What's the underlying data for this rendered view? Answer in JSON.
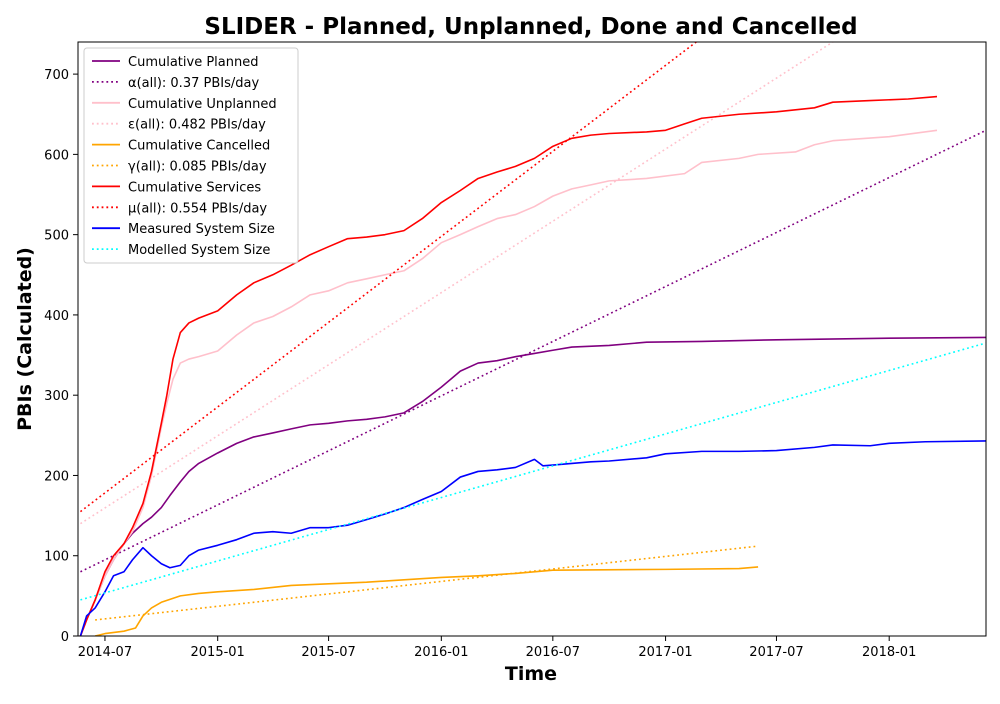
{
  "chart_data": {
    "type": "line",
    "title": "SLIDER - Planned, Unplanned, Done  and Cancelled",
    "xlabel": "Time",
    "ylabel": "PBIs (Calculated)",
    "xlim": [
      "2014-05-18",
      "2018-06-08"
    ],
    "ylim": [
      0,
      740
    ],
    "x_ticks": [
      "2014-07",
      "2015-01",
      "2015-07",
      "2016-01",
      "2016-07",
      "2017-01",
      "2017-07",
      "2018-01"
    ],
    "y_ticks": [
      0,
      100,
      200,
      300,
      400,
      500,
      600,
      700
    ],
    "grid": false,
    "legend_position": "upper left",
    "series": [
      {
        "name": "Cumulative Planned",
        "color": "#800080",
        "style": "solid",
        "points": [
          [
            "2014-05-22",
            0
          ],
          [
            "2014-06-01",
            20
          ],
          [
            "2014-06-15",
            45
          ],
          [
            "2014-07-01",
            75
          ],
          [
            "2014-07-15",
            95
          ],
          [
            "2014-08-01",
            115
          ],
          [
            "2014-08-15",
            128
          ],
          [
            "2014-09-01",
            140
          ],
          [
            "2014-09-15",
            148
          ],
          [
            "2014-10-01",
            160
          ],
          [
            "2014-10-15",
            175
          ],
          [
            "2014-11-01",
            192
          ],
          [
            "2014-11-15",
            205
          ],
          [
            "2014-12-01",
            215
          ],
          [
            "2015-01-01",
            228
          ],
          [
            "2015-02-01",
            240
          ],
          [
            "2015-03-01",
            248
          ],
          [
            "2015-04-01",
            253
          ],
          [
            "2015-05-01",
            258
          ],
          [
            "2015-06-01",
            263
          ],
          [
            "2015-07-01",
            265
          ],
          [
            "2015-08-01",
            268
          ],
          [
            "2015-09-01",
            270
          ],
          [
            "2015-10-01",
            273
          ],
          [
            "2015-11-01",
            278
          ],
          [
            "2015-12-01",
            292
          ],
          [
            "2016-01-01",
            310
          ],
          [
            "2016-02-01",
            330
          ],
          [
            "2016-03-01",
            340
          ],
          [
            "2016-04-01",
            343
          ],
          [
            "2016-05-01",
            348
          ],
          [
            "2016-06-01",
            352
          ],
          [
            "2016-07-01",
            356
          ],
          [
            "2016-08-01",
            360
          ],
          [
            "2016-10-01",
            362
          ],
          [
            "2016-12-01",
            366
          ],
          [
            "2017-03-01",
            367
          ],
          [
            "2017-07-01",
            369
          ],
          [
            "2018-01-01",
            371
          ],
          [
            "2018-06-08",
            372
          ]
        ]
      },
      {
        "name": "α(all): 0.37 PBIs/day",
        "color": "#800080",
        "style": "dotted",
        "points": [
          [
            "2014-05-22",
            80
          ],
          [
            "2018-06-08",
            630
          ]
        ]
      },
      {
        "name": "Cumulative Unplanned",
        "color": "#ffc0cb",
        "style": "solid",
        "points": [
          [
            "2014-05-22",
            0
          ],
          [
            "2014-06-01",
            20
          ],
          [
            "2014-06-15",
            45
          ],
          [
            "2014-07-01",
            75
          ],
          [
            "2014-07-15",
            95
          ],
          [
            "2014-08-01",
            115
          ],
          [
            "2014-08-15",
            130
          ],
          [
            "2014-09-01",
            160
          ],
          [
            "2014-09-15",
            200
          ],
          [
            "2014-10-01",
            260
          ],
          [
            "2014-10-10",
            290
          ],
          [
            "2014-10-20",
            320
          ],
          [
            "2014-11-01",
            340
          ],
          [
            "2014-11-15",
            345
          ],
          [
            "2014-12-01",
            348
          ],
          [
            "2015-01-01",
            355
          ],
          [
            "2015-02-01",
            375
          ],
          [
            "2015-03-01",
            390
          ],
          [
            "2015-04-01",
            398
          ],
          [
            "2015-05-01",
            410
          ],
          [
            "2015-06-01",
            425
          ],
          [
            "2015-07-01",
            430
          ],
          [
            "2015-08-01",
            440
          ],
          [
            "2015-09-01",
            445
          ],
          [
            "2015-10-01",
            450
          ],
          [
            "2015-11-01",
            455
          ],
          [
            "2015-12-01",
            470
          ],
          [
            "2016-01-01",
            490
          ],
          [
            "2016-02-01",
            500
          ],
          [
            "2016-03-01",
            510
          ],
          [
            "2016-04-01",
            520
          ],
          [
            "2016-05-01",
            525
          ],
          [
            "2016-06-01",
            535
          ],
          [
            "2016-07-01",
            548
          ],
          [
            "2016-08-01",
            557
          ],
          [
            "2016-09-01",
            562
          ],
          [
            "2016-10-01",
            567
          ],
          [
            "2016-12-01",
            570
          ],
          [
            "2017-02-01",
            576
          ],
          [
            "2017-03-01",
            590
          ],
          [
            "2017-05-01",
            595
          ],
          [
            "2017-06-01",
            600
          ],
          [
            "2017-08-01",
            603
          ],
          [
            "2017-09-01",
            612
          ],
          [
            "2017-10-01",
            617
          ],
          [
            "2018-01-01",
            622
          ],
          [
            "2018-03-20",
            630
          ]
        ]
      },
      {
        "name": "ε(all): 0.482 PBIs/day",
        "color": "#ffc0cb",
        "style": "dotted",
        "points": [
          [
            "2014-05-22",
            140
          ],
          [
            "2017-10-01",
            740
          ]
        ]
      },
      {
        "name": "Cumulative Cancelled",
        "color": "#ffa500",
        "style": "solid",
        "points": [
          [
            "2014-06-15",
            0
          ],
          [
            "2014-07-01",
            3
          ],
          [
            "2014-08-01",
            6
          ],
          [
            "2014-08-20",
            10
          ],
          [
            "2014-09-01",
            25
          ],
          [
            "2014-09-15",
            35
          ],
          [
            "2014-10-01",
            42
          ],
          [
            "2014-11-01",
            50
          ],
          [
            "2014-12-01",
            53
          ],
          [
            "2015-01-01",
            55
          ],
          [
            "2015-03-01",
            58
          ],
          [
            "2015-05-01",
            63
          ],
          [
            "2015-07-01",
            65
          ],
          [
            "2015-09-01",
            67
          ],
          [
            "2015-11-01",
            70
          ],
          [
            "2016-01-01",
            73
          ],
          [
            "2016-03-01",
            75
          ],
          [
            "2016-05-01",
            78
          ],
          [
            "2016-07-01",
            82
          ],
          [
            "2017-01-01",
            83
          ],
          [
            "2017-05-01",
            84
          ],
          [
            "2017-06-01",
            86
          ]
        ]
      },
      {
        "name": "γ(all): 0.085 PBIs/day",
        "color": "#ffa500",
        "style": "dotted",
        "points": [
          [
            "2014-06-15",
            20
          ],
          [
            "2017-06-01",
            112
          ]
        ]
      },
      {
        "name": "Cumulative Services",
        "color": "#ff0000",
        "style": "solid",
        "points": [
          [
            "2014-05-22",
            0
          ],
          [
            "2014-06-01",
            20
          ],
          [
            "2014-06-15",
            45
          ],
          [
            "2014-07-01",
            80
          ],
          [
            "2014-07-15",
            100
          ],
          [
            "2014-08-01",
            115
          ],
          [
            "2014-08-15",
            135
          ],
          [
            "2014-09-01",
            165
          ],
          [
            "2014-09-15",
            205
          ],
          [
            "2014-10-01",
            265
          ],
          [
            "2014-10-10",
            300
          ],
          [
            "2014-10-20",
            345
          ],
          [
            "2014-11-01",
            378
          ],
          [
            "2014-11-15",
            390
          ],
          [
            "2014-12-01",
            396
          ],
          [
            "2015-01-01",
            405
          ],
          [
            "2015-02-01",
            425
          ],
          [
            "2015-03-01",
            440
          ],
          [
            "2015-04-01",
            450
          ],
          [
            "2015-05-01",
            462
          ],
          [
            "2015-06-01",
            475
          ],
          [
            "2015-07-01",
            485
          ],
          [
            "2015-08-01",
            495
          ],
          [
            "2015-09-01",
            497
          ],
          [
            "2015-10-01",
            500
          ],
          [
            "2015-11-01",
            505
          ],
          [
            "2015-12-01",
            520
          ],
          [
            "2016-01-01",
            540
          ],
          [
            "2016-02-01",
            555
          ],
          [
            "2016-03-01",
            570
          ],
          [
            "2016-04-01",
            578
          ],
          [
            "2016-05-01",
            585
          ],
          [
            "2016-06-01",
            595
          ],
          [
            "2016-07-01",
            610
          ],
          [
            "2016-08-01",
            620
          ],
          [
            "2016-09-01",
            624
          ],
          [
            "2016-10-01",
            626
          ],
          [
            "2016-12-01",
            628
          ],
          [
            "2017-01-01",
            630
          ],
          [
            "2017-02-01",
            638
          ],
          [
            "2017-03-01",
            645
          ],
          [
            "2017-05-01",
            650
          ],
          [
            "2017-07-01",
            653
          ],
          [
            "2017-09-01",
            658
          ],
          [
            "2017-10-01",
            665
          ],
          [
            "2017-12-01",
            667
          ],
          [
            "2018-02-01",
            669
          ],
          [
            "2018-03-20",
            672
          ]
        ]
      },
      {
        "name": "μ(all): 0.554 PBIs/day",
        "color": "#ff0000",
        "style": "dotted",
        "points": [
          [
            "2014-05-22",
            155
          ],
          [
            "2017-02-20",
            740
          ]
        ]
      },
      {
        "name": "Measured System Size",
        "color": "#0000ff",
        "style": "solid",
        "points": [
          [
            "2014-05-22",
            0
          ],
          [
            "2014-06-01",
            25
          ],
          [
            "2014-06-15",
            35
          ],
          [
            "2014-07-01",
            55
          ],
          [
            "2014-07-15",
            75
          ],
          [
            "2014-08-01",
            80
          ],
          [
            "2014-08-15",
            95
          ],
          [
            "2014-09-01",
            110
          ],
          [
            "2014-09-15",
            100
          ],
          [
            "2014-10-01",
            90
          ],
          [
            "2014-10-15",
            85
          ],
          [
            "2014-11-01",
            88
          ],
          [
            "2014-11-15",
            100
          ],
          [
            "2014-12-01",
            107
          ],
          [
            "2015-01-01",
            113
          ],
          [
            "2015-02-01",
            120
          ],
          [
            "2015-03-01",
            128
          ],
          [
            "2015-04-01",
            130
          ],
          [
            "2015-05-01",
            128
          ],
          [
            "2015-06-01",
            135
          ],
          [
            "2015-07-01",
            135
          ],
          [
            "2015-08-01",
            138
          ],
          [
            "2015-09-01",
            145
          ],
          [
            "2015-10-01",
            152
          ],
          [
            "2015-11-01",
            160
          ],
          [
            "2015-12-01",
            170
          ],
          [
            "2016-01-01",
            180
          ],
          [
            "2016-02-01",
            198
          ],
          [
            "2016-03-01",
            205
          ],
          [
            "2016-04-01",
            207
          ],
          [
            "2016-05-01",
            210
          ],
          [
            "2016-06-01",
            220
          ],
          [
            "2016-06-15",
            212
          ],
          [
            "2016-07-01",
            213
          ],
          [
            "2016-08-01",
            215
          ],
          [
            "2016-09-01",
            217
          ],
          [
            "2016-10-01",
            218
          ],
          [
            "2016-12-01",
            222
          ],
          [
            "2017-01-01",
            227
          ],
          [
            "2017-03-01",
            230
          ],
          [
            "2017-05-01",
            230
          ],
          [
            "2017-07-01",
            231
          ],
          [
            "2017-09-01",
            235
          ],
          [
            "2017-10-01",
            238
          ],
          [
            "2017-12-01",
            237
          ],
          [
            "2018-01-01",
            240
          ],
          [
            "2018-03-01",
            242
          ],
          [
            "2018-06-08",
            243
          ]
        ]
      },
      {
        "name": "Modelled System Size",
        "color": "#00ffff",
        "style": "dotted",
        "points": [
          [
            "2014-05-22",
            45
          ],
          [
            "2018-06-08",
            365
          ]
        ]
      }
    ]
  }
}
